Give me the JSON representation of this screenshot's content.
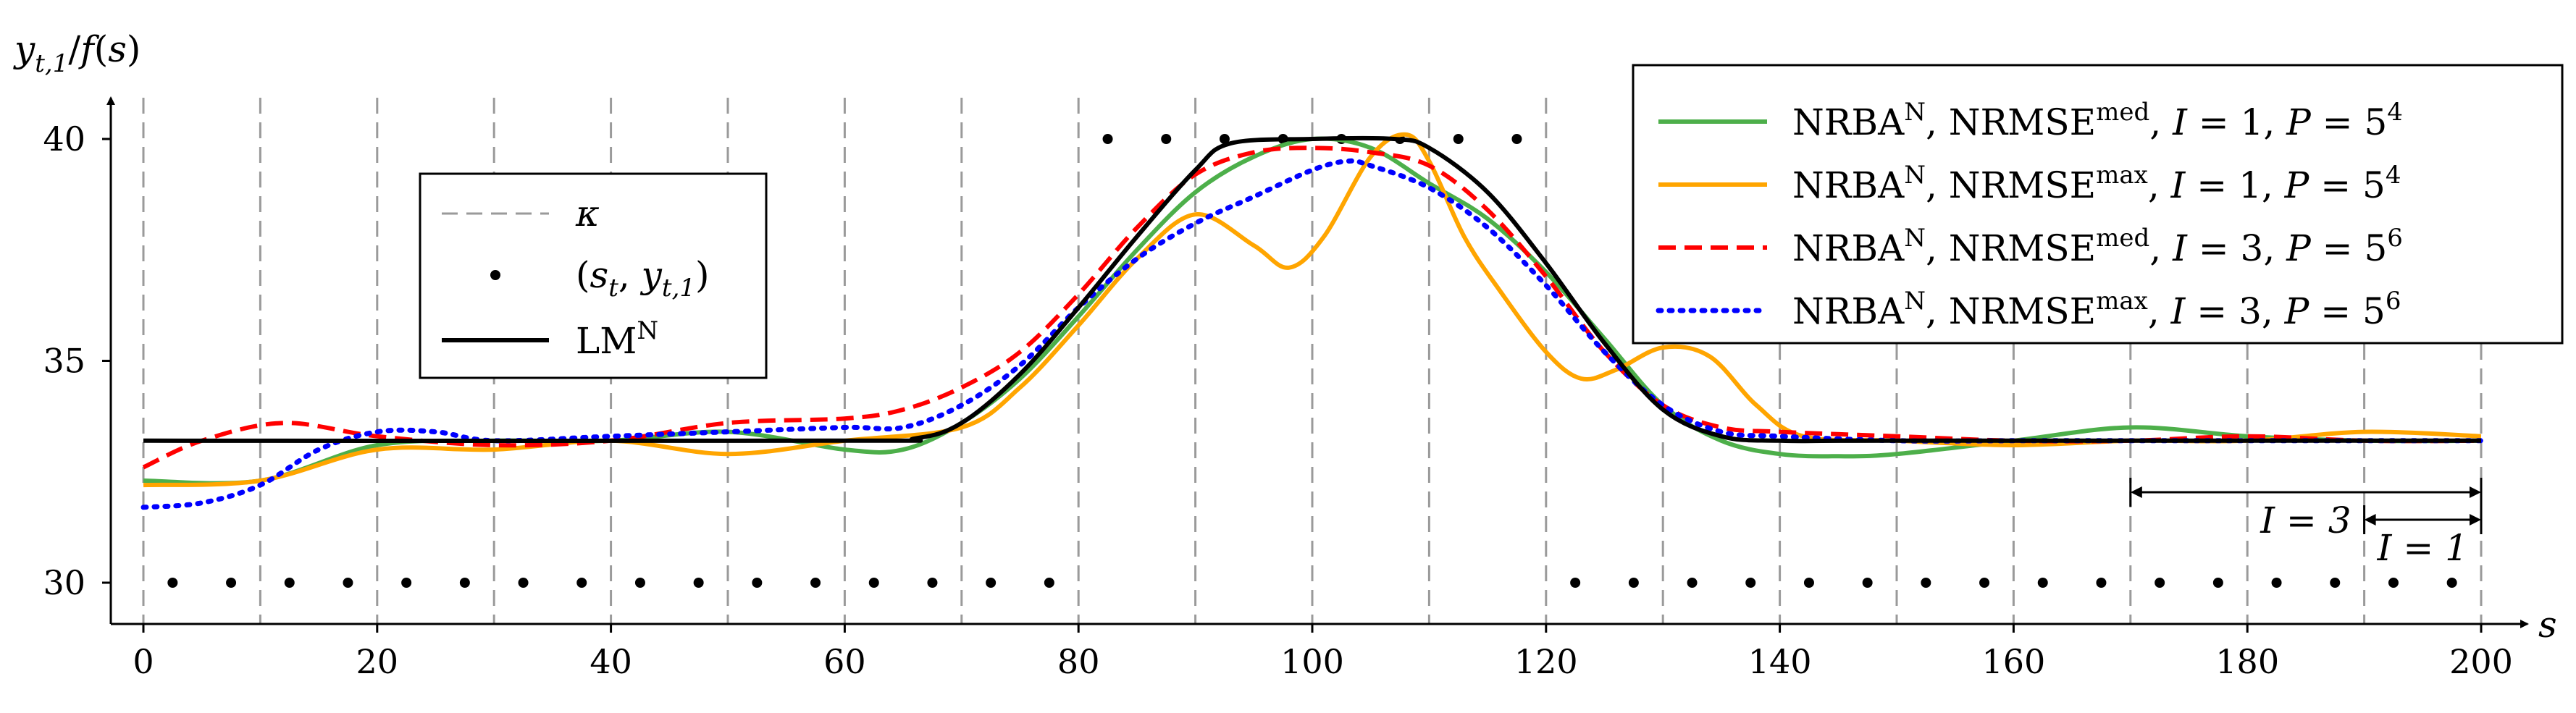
{
  "chart_data": {
    "type": "line",
    "xlabel": "s",
    "ylabel": "y_{t,1}/f(s)",
    "xlim": [
      -3,
      206
    ],
    "ylim": [
      29,
      41
    ],
    "xticks": [
      0,
      20,
      40,
      60,
      80,
      100,
      120,
      140,
      160,
      180,
      200
    ],
    "yticks": [
      30,
      35,
      40
    ],
    "knots_kappa": [
      0,
      10,
      20,
      30,
      40,
      50,
      60,
      70,
      80,
      90,
      100,
      110,
      120,
      130,
      140,
      150,
      160,
      170,
      180,
      190,
      200
    ],
    "samples": {
      "name": "(s_t, y_t,1)",
      "x": [
        2.5,
        7.5,
        12.5,
        17.5,
        22.5,
        27.5,
        32.5,
        37.5,
        42.5,
        47.5,
        52.5,
        57.5,
        62.5,
        67.5,
        72.5,
        77.5,
        82.5,
        87.5,
        92.5,
        97.5,
        102.5,
        107.5,
        112.5,
        117.5,
        122.5,
        127.5,
        132.5,
        137.5,
        142.5,
        147.5,
        152.5,
        157.5,
        162.5,
        167.5,
        172.5,
        177.5,
        182.5,
        187.5,
        192.5,
        197.5
      ],
      "y": [
        30,
        30,
        30,
        30,
        30,
        30,
        30,
        30,
        30,
        30,
        30,
        30,
        30,
        30,
        30,
        30,
        40,
        40,
        40,
        40,
        40,
        40,
        40,
        40,
        30,
        30,
        30,
        30,
        30,
        30,
        30,
        30,
        30,
        30,
        30,
        30,
        30,
        30,
        30,
        30
      ]
    },
    "series": [
      {
        "name": "LM^N",
        "color": "#000000",
        "style": "solid",
        "legend": "left",
        "x": [
          0,
          60,
          66,
          70,
          75,
          80,
          85,
          90,
          93,
          100,
          107,
          110,
          115,
          120,
          125,
          130,
          135,
          140,
          150,
          200
        ],
        "y": [
          33.2,
          33.2,
          33.25,
          33.6,
          34.7,
          36.2,
          37.8,
          39.3,
          39.9,
          40.0,
          40.0,
          39.8,
          38.8,
          37.2,
          35.4,
          33.9,
          33.3,
          33.2,
          33.2,
          33.2
        ]
      },
      {
        "name": "NRBA^N, NRMSE^med, I = 1, P = 5^4",
        "color": "#4daf4a",
        "style": "solid",
        "legend": "right",
        "x": [
          0,
          10,
          20,
          30,
          40,
          50,
          60,
          65,
          70,
          75,
          80,
          85,
          90,
          95,
          100,
          105,
          110,
          115,
          120,
          125,
          130,
          135,
          140,
          145,
          150,
          160,
          170,
          180,
          190,
          200
        ],
        "y": [
          32.3,
          32.3,
          33.1,
          33.2,
          33.2,
          33.4,
          33.0,
          33.0,
          33.6,
          34.6,
          36.0,
          37.5,
          38.8,
          39.6,
          40.0,
          39.8,
          39.0,
          38.2,
          37.0,
          35.5,
          34.0,
          33.2,
          32.9,
          32.85,
          32.9,
          33.2,
          33.5,
          33.3,
          33.2,
          33.2
        ]
      },
      {
        "name": "NRBA^N, NRMSE^max, I = 1, P = 5^4",
        "color": "#ffa500",
        "style": "solid",
        "legend": "right",
        "x": [
          0,
          10,
          20,
          30,
          40,
          50,
          60,
          70,
          75,
          80,
          85,
          90,
          95,
          98,
          101,
          105,
          108,
          110,
          113,
          116,
          120,
          123,
          126,
          130,
          134,
          138,
          142,
          150,
          160,
          170,
          180,
          190,
          200
        ],
        "y": [
          32.2,
          32.3,
          33.0,
          33.0,
          33.2,
          32.9,
          33.2,
          33.5,
          34.4,
          35.8,
          37.3,
          38.3,
          37.6,
          37.1,
          37.8,
          39.6,
          40.1,
          39.5,
          37.8,
          36.6,
          35.2,
          34.6,
          34.8,
          35.3,
          35.1,
          34.0,
          33.3,
          33.2,
          33.1,
          33.2,
          33.2,
          33.4,
          33.3
        ]
      },
      {
        "name": "NRBA^N, NRMSE^med, I = 3, P = 5^6",
        "color": "#ff0000",
        "style": "dashed",
        "legend": "right",
        "x": [
          0,
          5,
          12,
          20,
          30,
          40,
          50,
          60,
          65,
          70,
          75,
          80,
          85,
          90,
          95,
          100,
          105,
          110,
          115,
          120,
          125,
          130,
          135,
          140,
          150,
          160,
          170,
          180,
          190,
          200
        ],
        "y": [
          32.6,
          33.2,
          33.6,
          33.3,
          33.1,
          33.2,
          33.6,
          33.7,
          33.9,
          34.4,
          35.2,
          36.5,
          38.0,
          39.2,
          39.7,
          39.8,
          39.7,
          39.4,
          38.4,
          36.9,
          35.2,
          34.0,
          33.5,
          33.4,
          33.3,
          33.2,
          33.2,
          33.3,
          33.2,
          33.2
        ]
      },
      {
        "name": "NRBA^N, NRMSE^max, I = 3, P = 5^6",
        "color": "#0000ff",
        "style": "dotted",
        "legend": "right",
        "x": [
          0,
          5,
          10,
          15,
          20,
          25,
          30,
          40,
          50,
          60,
          65,
          70,
          75,
          80,
          85,
          90,
          95,
          100,
          103,
          105,
          110,
          115,
          120,
          125,
          130,
          135,
          140,
          150,
          160,
          170,
          180,
          190,
          200
        ],
        "y": [
          31.7,
          31.8,
          32.2,
          33.0,
          33.4,
          33.4,
          33.2,
          33.3,
          33.4,
          33.5,
          33.5,
          34.0,
          34.9,
          36.2,
          37.3,
          38.1,
          38.7,
          39.3,
          39.5,
          39.4,
          38.9,
          38.0,
          36.7,
          35.2,
          34.0,
          33.4,
          33.3,
          33.2,
          33.2,
          33.2,
          33.2,
          33.2,
          33.2
        ]
      }
    ],
    "legend_left": {
      "kappa": "κ",
      "samples": "(s_t, y_t,1)",
      "lm": "LM^N",
      "placement": "upper-left"
    },
    "legend_right_placement": "top-right",
    "annotations": [
      {
        "text": "I = 3",
        "x_from": 170,
        "x_to": 200
      },
      {
        "text": "I = 1",
        "x_from": 190,
        "x_to": 200
      }
    ]
  }
}
